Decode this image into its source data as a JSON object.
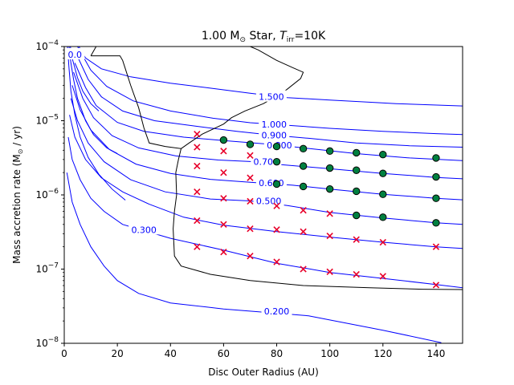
{
  "chart_data": {
    "type": "scatter",
    "title_parts": {
      "main": "1.00 M",
      "sun": "⊙",
      "mid": " Star, ",
      "t": "T",
      "sub": "irr",
      "tail": "=10K"
    },
    "xlabel": "Disc Outer Radius (AU)",
    "ylabel_parts": {
      "main": "Mass accretion rate (M",
      "sun": "⊙",
      "tail": " / yr)"
    },
    "xlim": [
      0,
      150
    ],
    "ylim": [
      1e-08,
      0.0001
    ],
    "yscale": "log",
    "grid": false,
    "x_ticks": [
      0,
      20,
      40,
      60,
      80,
      100,
      120,
      140
    ],
    "y_ticks": [
      {
        "value": 1e-08,
        "base": "10",
        "exp": "−8"
      },
      {
        "value": 1e-07,
        "base": "10",
        "exp": "−7"
      },
      {
        "value": 1e-06,
        "base": "10",
        "exp": "−6"
      },
      {
        "value": 1e-05,
        "base": "10",
        "exp": "−5"
      },
      {
        "value": 0.0001,
        "base": "10",
        "exp": "−4"
      }
    ],
    "colors": {
      "contour": "#0000ff",
      "boundary": "#000000",
      "marker_x": "#e8002a",
      "marker_dot": "#008040"
    },
    "contours": [
      {
        "label": "0.200",
        "label_at": [
          80,
          2.7e-08
        ],
        "points": [
          [
            1,
            2e-06
          ],
          [
            3,
            8e-07
          ],
          [
            6,
            4e-07
          ],
          [
            10,
            2e-07
          ],
          [
            15,
            1.1e-07
          ],
          [
            20,
            7e-08
          ],
          [
            28,
            4.7e-08
          ],
          [
            40,
            3.5e-08
          ],
          [
            60,
            2.9e-08
          ],
          [
            68,
            2.75e-08
          ],
          [
            92,
            2.35e-08
          ],
          [
            120,
            1.5e-08
          ],
          [
            142,
            1.02e-08
          ]
        ]
      },
      {
        "label": "0.300",
        "label_at": [
          30,
          3.4e-07
        ],
        "points": [
          [
            1.5,
            6e-06
          ],
          [
            3,
            3e-06
          ],
          [
            6,
            1.6e-06
          ],
          [
            10,
            9e-07
          ],
          [
            15,
            6e-07
          ],
          [
            22,
            4e-07
          ],
          [
            30,
            3.3e-07
          ],
          [
            40,
            2.6e-07
          ],
          [
            60,
            1.8e-07
          ],
          [
            80,
            1.2e-07
          ],
          [
            100,
            9e-08
          ],
          [
            120,
            7.5e-08
          ],
          [
            140,
            6.2e-08
          ],
          [
            150,
            5.6e-08
          ]
        ]
      },
      {
        "label": "",
        "points": [
          [
            2,
            1.2e-05
          ],
          [
            4,
            6e-06
          ],
          [
            8,
            3e-06
          ],
          [
            14,
            1.7e-06
          ],
          [
            22,
            1.1e-06
          ],
          [
            32,
            7.5e-07
          ],
          [
            45,
            5e-07
          ],
          [
            60,
            3.9e-07
          ],
          [
            80,
            3.2e-07
          ],
          [
            100,
            2.7e-07
          ],
          [
            120,
            2.3e-07
          ],
          [
            140,
            2e-07
          ],
          [
            150,
            1.9e-07
          ]
        ]
      },
      {
        "label": "0.500",
        "label_at": [
          77,
          8.3e-07
        ],
        "points": [
          [
            2.5,
            2e-05
          ],
          [
            5,
            1e-05
          ],
          [
            9,
            5e-06
          ],
          [
            15,
            2.8e-06
          ],
          [
            25,
            1.6e-06
          ],
          [
            38,
            1.1e-06
          ],
          [
            55,
            8.8e-07
          ],
          [
            70,
            8.3e-07
          ],
          [
            84,
            7.2e-07
          ],
          [
            100,
            5.8e-07
          ],
          [
            120,
            4.9e-07
          ],
          [
            140,
            4.2e-07
          ],
          [
            150,
            4e-07
          ]
        ]
      },
      {
        "label": "0.600",
        "label_at": [
          78,
          1.45e-06
        ],
        "points": [
          [
            3,
            3e-05
          ],
          [
            6,
            1.4e-05
          ],
          [
            10,
            7.5e-06
          ],
          [
            17,
            4.1e-06
          ],
          [
            27,
            2.6e-06
          ],
          [
            40,
            1.95e-06
          ],
          [
            55,
            1.62e-06
          ],
          [
            70,
            1.48e-06
          ],
          [
            86,
            1.35e-06
          ],
          [
            100,
            1.2e-06
          ],
          [
            120,
            1.02e-06
          ],
          [
            140,
            9e-07
          ],
          [
            150,
            8.6e-07
          ]
        ]
      },
      {
        "label": "0.700",
        "label_at": [
          76,
          2.8e-06
        ],
        "points": [
          [
            3.5,
            4.5e-05
          ],
          [
            7,
            2e-05
          ],
          [
            11,
            1.1e-05
          ],
          [
            18,
            6.3e-06
          ],
          [
            28,
            4.3e-06
          ],
          [
            42,
            3.35e-06
          ],
          [
            58,
            2.95e-06
          ],
          [
            70,
            2.82e-06
          ],
          [
            82,
            2.55e-06
          ],
          [
            100,
            2.25e-06
          ],
          [
            120,
            1.95e-06
          ],
          [
            140,
            1.72e-06
          ],
          [
            150,
            1.65e-06
          ]
        ]
      },
      {
        "label": "0.800",
        "label_at": [
          81,
          4.7e-06
        ],
        "points": [
          [
            4,
            6e-05
          ],
          [
            8,
            2.8e-05
          ],
          [
            12,
            1.6e-05
          ],
          [
            20,
            9.5e-06
          ],
          [
            30,
            7.2e-06
          ],
          [
            45,
            6e-06
          ],
          [
            60,
            5.4e-06
          ],
          [
            78,
            4.8e-06
          ],
          [
            90,
            4.3e-06
          ],
          [
            110,
            3.6e-06
          ],
          [
            130,
            3.15e-06
          ],
          [
            150,
            2.9e-06
          ]
        ]
      },
      {
        "label": "0.900",
        "label_at": [
          79,
          6.4e-06
        ],
        "points": [
          [
            4.5,
            8e-05
          ],
          [
            9,
            3.6e-05
          ],
          [
            14,
            2.1e-05
          ],
          [
            22,
            1.35e-05
          ],
          [
            34,
            1e-05
          ],
          [
            50,
            8.4e-06
          ],
          [
            65,
            7.2e-06
          ],
          [
            78,
            6.4e-06
          ],
          [
            92,
            5.8e-06
          ],
          [
            110,
            5e-06
          ],
          [
            130,
            4.6e-06
          ],
          [
            150,
            4.4e-06
          ]
        ]
      },
      {
        "label": "1.000",
        "label_at": [
          79,
          8.9e-06
        ],
        "points": [
          [
            5,
            0.0001
          ],
          [
            10,
            4.8e-05
          ],
          [
            16,
            2.9e-05
          ],
          [
            26,
            1.85e-05
          ],
          [
            40,
            1.35e-05
          ],
          [
            56,
            1.08e-05
          ],
          [
            70,
            9.4e-06
          ],
          [
            80,
            8.9e-06
          ],
          [
            100,
            7.9e-06
          ],
          [
            120,
            7.2e-06
          ],
          [
            140,
            6.7e-06
          ],
          [
            150,
            6.5e-06
          ]
        ]
      },
      {
        "label": "1.500",
        "label_at": [
          78,
          2.1e-05
        ],
        "points": [
          [
            5.5,
            0.0001
          ],
          [
            8,
            7e-05
          ],
          [
            14,
            5e-05
          ],
          [
            25,
            3.9e-05
          ],
          [
            40,
            3.2e-05
          ],
          [
            55,
            2.75e-05
          ],
          [
            70,
            2.35e-05
          ],
          [
            84,
            2.05e-05
          ],
          [
            100,
            1.9e-05
          ],
          [
            125,
            1.7e-05
          ],
          [
            150,
            1.58e-05
          ]
        ]
      },
      {
        "label": "",
        "points": [
          [
            1.2,
            0.0001
          ],
          [
            1.8,
            5e-05
          ],
          [
            2.5,
            2.5e-05
          ],
          [
            4,
            1.2e-05
          ],
          [
            6,
            6e-06
          ],
          [
            9,
            3.2e-06
          ],
          [
            13,
            1.9e-06
          ],
          [
            18,
            1.2e-06
          ],
          [
            23,
            8.5e-07
          ]
        ]
      },
      {
        "label": "",
        "points": [
          [
            1.8,
            0.0001
          ],
          [
            2.5,
            6e-05
          ],
          [
            3.5,
            3.6e-05
          ],
          [
            5,
            2e-05
          ],
          [
            8,
            1e-05
          ],
          [
            11,
            6.5e-06
          ],
          [
            16,
            4.3e-06
          ],
          [
            20,
            3.6e-06
          ]
        ]
      },
      {
        "label": "",
        "points": [
          [
            2.3,
            0.0001
          ],
          [
            3.2,
            6.5e-05
          ],
          [
            5,
            3.8e-05
          ],
          [
            7,
            2.5e-05
          ],
          [
            10,
            1.7e-05
          ],
          [
            13,
            1.35e-05
          ]
        ]
      },
      {
        "label": "0.0",
        "label_at": [
          4,
          7.8e-05
        ],
        "points": []
      }
    ],
    "boundaries": [
      {
        "points": [
          [
            10,
            7.5e-05
          ],
          [
            12,
            0.0001
          ],
          [
            25,
            0.0001
          ],
          [
            35,
            0.0001
          ],
          [
            45,
            0.0001
          ],
          [
            49,
            0.0001
          ],
          [
            55,
            0.0001
          ],
          [
            60,
            0.0001
          ],
          [
            65,
            0.0001
          ],
          [
            68,
            0.0001
          ],
          [
            68.5,
            0.0001
          ]
        ]
      },
      {
        "points": [
          [
            10,
            7.5e-05
          ],
          [
            21,
            7.5e-05
          ],
          [
            22,
            6.5e-05
          ],
          [
            23,
            5e-05
          ],
          [
            25,
            3e-05
          ],
          [
            28,
            1.5e-05
          ],
          [
            30,
            8e-06
          ],
          [
            32,
            5e-06
          ],
          [
            38,
            4.5e-06
          ],
          [
            44,
            4.2e-06
          ],
          [
            43,
            3e-06
          ],
          [
            42,
            2e-06
          ],
          [
            42.3,
            1e-06
          ],
          [
            41.5,
            6e-07
          ],
          [
            41,
            3.5e-07
          ],
          [
            41.5,
            1.5e-07
          ],
          [
            44,
            1.1e-07
          ],
          [
            55,
            8.5e-08
          ],
          [
            70,
            7e-08
          ],
          [
            90,
            6e-08
          ],
          [
            115,
            5.6e-08
          ],
          [
            135,
            5.35e-08
          ],
          [
            150,
            5.3e-08
          ]
        ]
      },
      {
        "points": [
          [
            70,
            0.0001
          ],
          [
            73,
            9e-05
          ],
          [
            80,
            6.5e-05
          ],
          [
            86,
            5.2e-05
          ],
          [
            90,
            4.5e-05
          ],
          [
            89,
            3.7e-05
          ],
          [
            83,
            2.5e-05
          ],
          [
            75,
            1.7e-05
          ],
          [
            68,
            1.35e-05
          ],
          [
            63,
            1.1e-05
          ],
          [
            60,
            9e-06
          ],
          [
            52,
            6.6e-06
          ],
          [
            47,
            5e-06
          ],
          [
            44,
            4.2e-06
          ]
        ]
      }
    ],
    "series": [
      {
        "marker": "x",
        "points": [
          [
            50,
            6.6e-06
          ],
          [
            50,
            4.4e-06
          ],
          [
            50,
            2.45e-06
          ],
          [
            50,
            1.1e-06
          ],
          [
            50,
            4.5e-07
          ],
          [
            50,
            2e-07
          ],
          [
            60,
            3.9e-06
          ],
          [
            60,
            2e-06
          ],
          [
            60,
            9e-07
          ],
          [
            60,
            4e-07
          ],
          [
            60,
            1.7e-07
          ],
          [
            70,
            3.4e-06
          ],
          [
            70,
            1.7e-06
          ],
          [
            70,
            8.2e-07
          ],
          [
            70,
            3.5e-07
          ],
          [
            70,
            1.5e-07
          ],
          [
            80,
            7.1e-07
          ],
          [
            80,
            3.4e-07
          ],
          [
            80,
            1.25e-07
          ],
          [
            90,
            6.2e-07
          ],
          [
            90,
            3.2e-07
          ],
          [
            90,
            1e-07
          ],
          [
            100,
            5.6e-07
          ],
          [
            100,
            2.8e-07
          ],
          [
            100,
            9.2e-08
          ],
          [
            110,
            2.5e-07
          ],
          [
            110,
            8.5e-08
          ],
          [
            120,
            2.3e-07
          ],
          [
            120,
            8e-08
          ],
          [
            140,
            2e-07
          ],
          [
            140,
            6.1e-08
          ]
        ]
      },
      {
        "marker": "o",
        "points": [
          [
            60,
            5.5e-06
          ],
          [
            70,
            4.8e-06
          ],
          [
            80,
            4.5e-06
          ],
          [
            80,
            2.8e-06
          ],
          [
            80,
            1.4e-06
          ],
          [
            90,
            4.2e-06
          ],
          [
            90,
            2.45e-06
          ],
          [
            90,
            1.3e-06
          ],
          [
            100,
            3.9e-06
          ],
          [
            100,
            2.3e-06
          ],
          [
            100,
            1.2e-06
          ],
          [
            110,
            3.7e-06
          ],
          [
            110,
            2.15e-06
          ],
          [
            110,
            1.12e-06
          ],
          [
            110,
            5.3e-07
          ],
          [
            120,
            3.5e-06
          ],
          [
            120,
            1.95e-06
          ],
          [
            120,
            1.02e-06
          ],
          [
            120,
            5e-07
          ],
          [
            140,
            3.15e-06
          ],
          [
            140,
            1.75e-06
          ],
          [
            140,
            9e-07
          ],
          [
            140,
            4.2e-07
          ]
        ]
      }
    ]
  }
}
